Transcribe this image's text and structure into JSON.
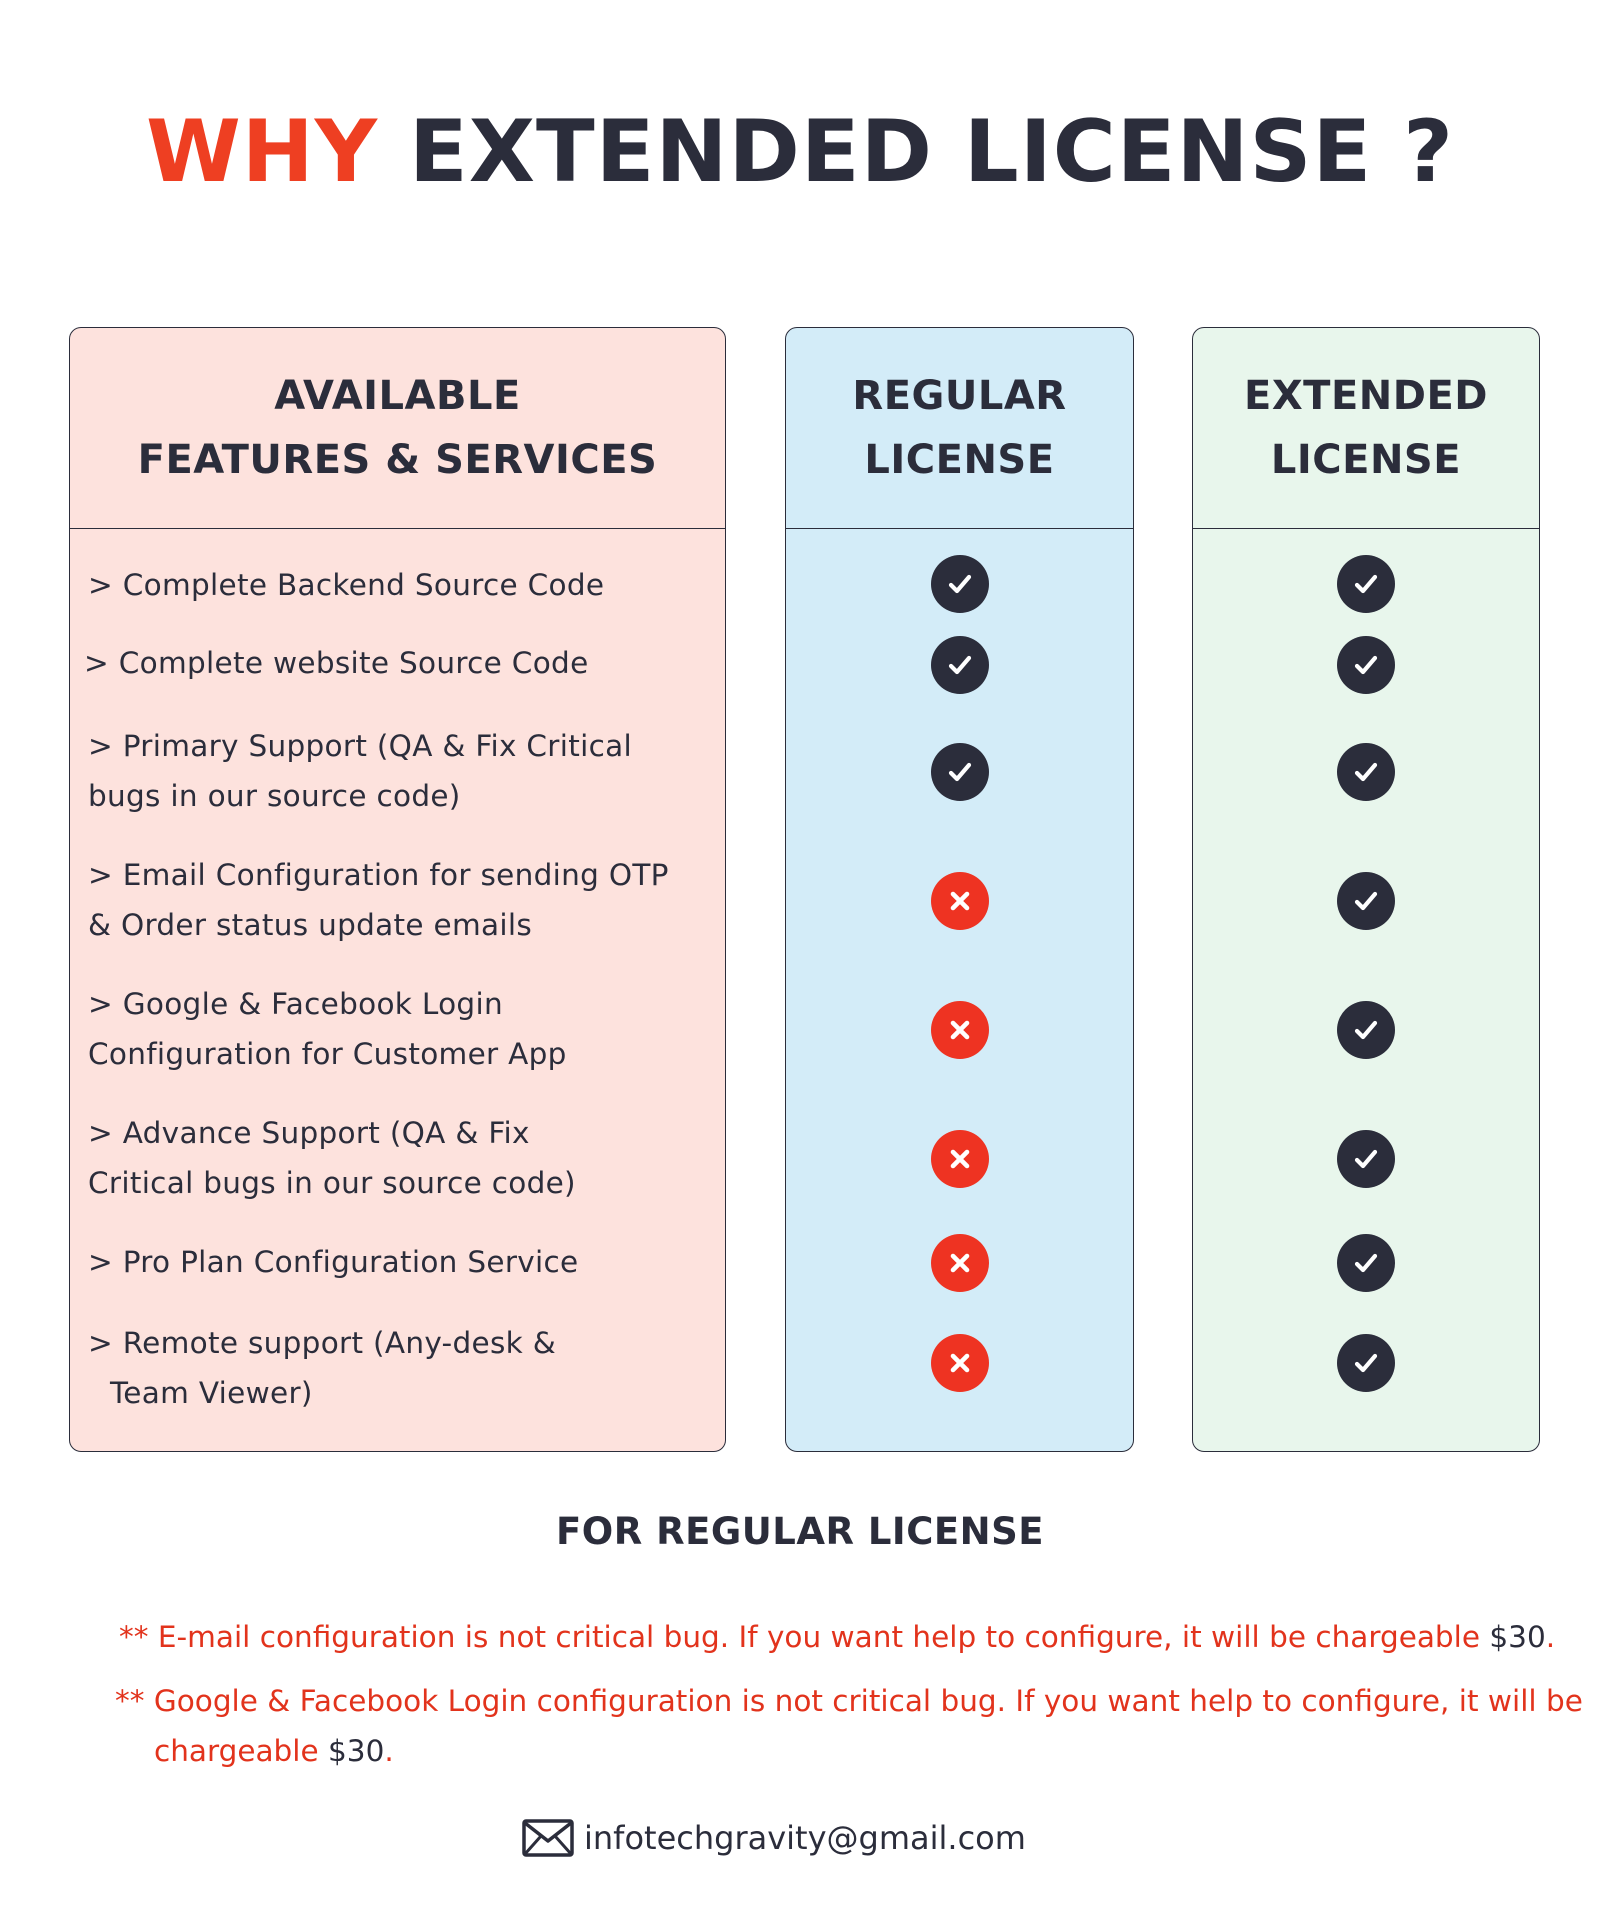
{
  "title": {
    "accent": "WHY",
    "main": "EXTENDED LICENSE ?"
  },
  "columns": {
    "features": {
      "line1": "AVAILABLE",
      "line2": "FEATURES & SERVICES"
    },
    "regular": {
      "line1": "REGULAR",
      "line2": "LICENSE"
    },
    "extended": {
      "line1": "EXTENDED",
      "line2": "LICENSE"
    }
  },
  "features": [
    {
      "lines": [
        "> Complete Backend Source Code"
      ],
      "regular": "check-icon",
      "extended": "check-icon"
    },
    {
      "lines": [
        "> Complete website Source Code"
      ],
      "regular": "check-icon",
      "extended": "check-icon"
    },
    {
      "lines": [
        "> Primary Support (QA & Fix Critical",
        "bugs in our source code)"
      ],
      "regular": "check-icon",
      "extended": "check-icon"
    },
    {
      "lines": [
        "> Email Configuration for sending OTP",
        "& Order status update emails"
      ],
      "regular": "cross-icon",
      "extended": "check-icon"
    },
    {
      "lines": [
        "> Google & Facebook Login",
        "Configuration for Customer App"
      ],
      "regular": "cross-icon",
      "extended": "check-icon"
    },
    {
      "lines": [
        "> Advance Support (QA & Fix",
        "Critical bugs in our source code)"
      ],
      "regular": "cross-icon",
      "extended": "check-icon"
    },
    {
      "lines": [
        "> Pro Plan Configuration Service"
      ],
      "regular": "cross-icon",
      "extended": "check-icon"
    },
    {
      "lines": [
        "> Remote support (Any-desk &",
        "Team Viewer)"
      ],
      "regular": "cross-icon",
      "extended": "check-icon"
    }
  ],
  "regular_section": {
    "heading": "FOR REGULAR LICENSE",
    "notes": [
      {
        "text": "** E-mail configuration is not critical bug. If you want help to configure, it will be chargeable",
        "price": "$30",
        "end": "."
      },
      {
        "text": "** Google & Facebook Login configuration is not critical bug. If you want help to configure, it will be",
        "text2": "chargeable",
        "price": "$30",
        "end": "."
      }
    ]
  },
  "contact": {
    "icon": "mail-icon",
    "email": "infotechgravity@gmail.com"
  },
  "colors": {
    "accent": "#ee3f22",
    "dark": "#2b2d3b",
    "features_bg": "#fde2dd",
    "regular_bg": "#d3ecf8",
    "extended_bg": "#e8f6ec",
    "cross": "#ee3322"
  }
}
